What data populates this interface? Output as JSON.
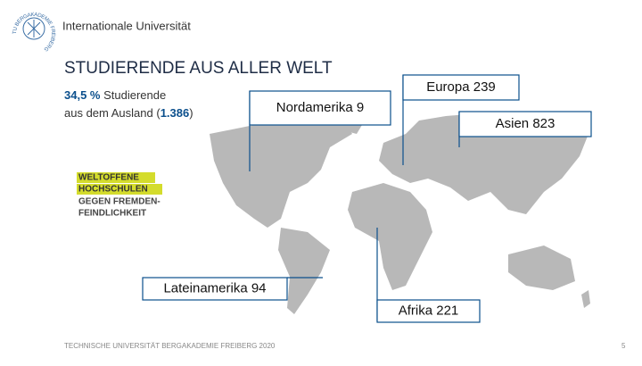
{
  "header": {
    "subtitle": "Internationale Universität",
    "logo_text": "TU BERGAKADEMIE FREIBERG"
  },
  "title": "STUDIERENDE AUS ALLER WELT",
  "summary": {
    "share": "34,5 %",
    "line1": "Studierende",
    "line2_start": "aus dem Ausland (",
    "total": "1.386",
    "line2_end": ")"
  },
  "badge": [
    "WELTOFFENE",
    "HOCHSCHULEN",
    "GEGEN FREMDEN-",
    "FEINDLICHKEIT"
  ],
  "regions": [
    {
      "name": "Nordamerika",
      "count": 9
    },
    {
      "name": "Europa",
      "count": 239
    },
    {
      "name": "Asien",
      "count": 823
    },
    {
      "name": "Lateinamerika",
      "count": 94
    },
    {
      "name": "Afrika",
      "count": 221
    }
  ],
  "footer": {
    "text": "TECHNISCHE UNIVERSITÄT BERGAKADEMIE FREIBERG 2020",
    "page": "5"
  }
}
